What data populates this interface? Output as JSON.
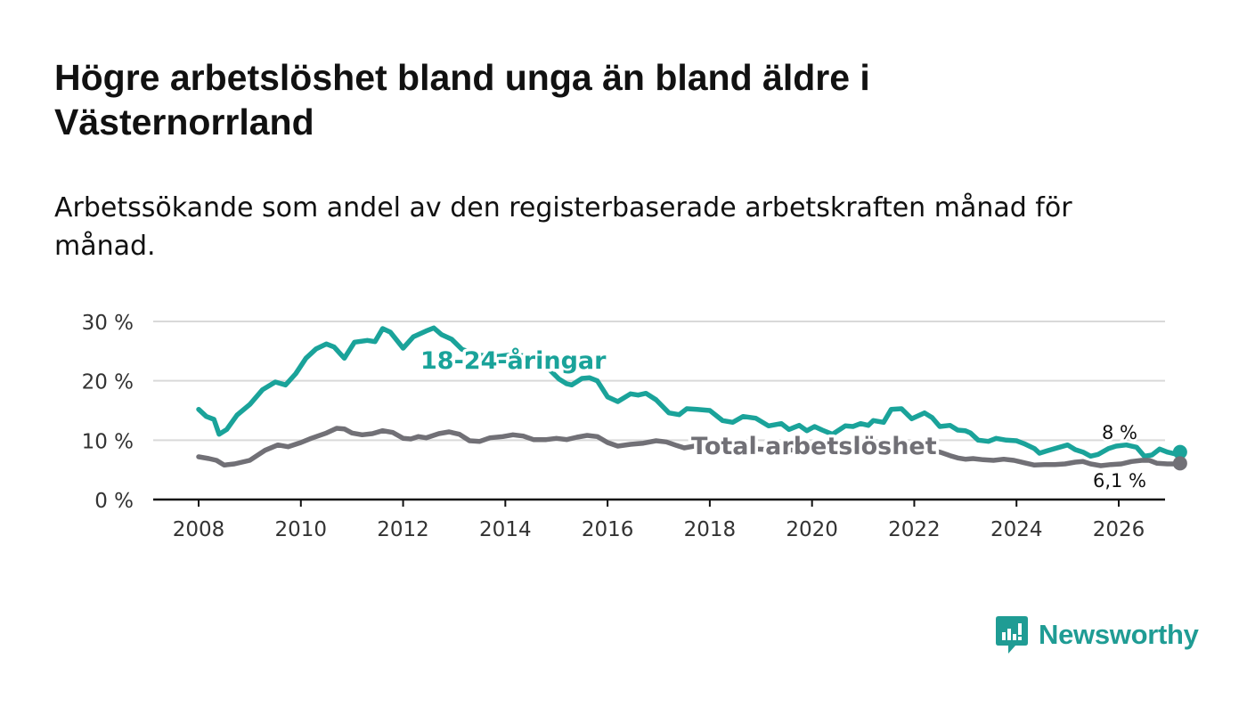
{
  "header": {
    "title": "Högre arbetslöshet bland unga än bland äldre i Västernorrland",
    "subtitle": "Arbetssökande som andel av den registerbaserade arbetskraften månad för månad."
  },
  "brand": {
    "name": "Newsworthy",
    "color": "#1f9c94",
    "icon": "newsworthy-logo-icon"
  },
  "chart_data": {
    "type": "line",
    "title": "Högre arbetslöshet bland unga än bland äldre i Västernorrland",
    "subtitle": "Arbetssökande som andel av den registerbaserade arbetskraften månad för månad.",
    "xlabel": "",
    "ylabel": "",
    "xlim": [
      2007.5,
      2026.9
    ],
    "ylim": [
      0,
      30
    ],
    "x_ticks": [
      2008,
      2010,
      2012,
      2014,
      2016,
      2018,
      2020,
      2022,
      2024,
      2026
    ],
    "x_tick_labels": [
      "2008",
      "2010",
      "2012",
      "2014",
      "2016",
      "2018",
      "2020",
      "2022",
      "2024",
      "2026"
    ],
    "y_ticks": [
      0,
      10,
      20,
      30
    ],
    "y_tick_labels": [
      "0 %",
      "10 %",
      "20 %",
      "30 %"
    ],
    "grid": true,
    "legend": "inline labels on lines",
    "series": [
      {
        "name": "18-24-åringar",
        "color": "#1aa39a",
        "end_label": "8 %",
        "points": [
          [
            2008.0,
            15.2
          ],
          [
            2008.15,
            14.0
          ],
          [
            2008.3,
            13.5
          ],
          [
            2008.4,
            11.0
          ],
          [
            2008.55,
            11.8
          ],
          [
            2008.75,
            14.2
          ],
          [
            2009.0,
            16.0
          ],
          [
            2009.25,
            18.5
          ],
          [
            2009.5,
            19.8
          ],
          [
            2009.7,
            19.3
          ],
          [
            2009.9,
            21.2
          ],
          [
            2010.1,
            23.8
          ],
          [
            2010.3,
            25.4
          ],
          [
            2010.5,
            26.2
          ],
          [
            2010.65,
            25.7
          ],
          [
            2010.85,
            23.8
          ],
          [
            2011.05,
            26.5
          ],
          [
            2011.3,
            26.8
          ],
          [
            2011.45,
            26.6
          ],
          [
            2011.6,
            28.8
          ],
          [
            2011.75,
            28.2
          ],
          [
            2012.0,
            25.5
          ],
          [
            2012.2,
            27.4
          ],
          [
            2012.45,
            28.4
          ],
          [
            2012.6,
            28.9
          ],
          [
            2012.75,
            27.8
          ],
          [
            2012.95,
            27.0
          ],
          [
            2013.15,
            25.3
          ],
          [
            2013.5,
            24.3
          ],
          [
            2013.85,
            24.1
          ],
          [
            2014.2,
            24.5
          ],
          [
            2014.55,
            23.8
          ],
          [
            2014.85,
            22.0
          ],
          [
            2015.05,
            20.3
          ],
          [
            2015.2,
            19.5
          ],
          [
            2015.3,
            19.3
          ],
          [
            2015.5,
            20.4
          ],
          [
            2015.65,
            20.5
          ],
          [
            2015.8,
            20.0
          ],
          [
            2016.0,
            17.3
          ],
          [
            2016.2,
            16.5
          ],
          [
            2016.45,
            17.8
          ],
          [
            2016.6,
            17.6
          ],
          [
            2016.75,
            17.9
          ],
          [
            2016.95,
            16.8
          ],
          [
            2017.2,
            14.6
          ],
          [
            2017.4,
            14.3
          ],
          [
            2017.55,
            15.3
          ],
          [
            2017.75,
            15.2
          ],
          [
            2018.0,
            15.0
          ],
          [
            2018.25,
            13.3
          ],
          [
            2018.45,
            13.0
          ],
          [
            2018.65,
            14.0
          ],
          [
            2018.9,
            13.7
          ],
          [
            2019.15,
            12.4
          ],
          [
            2019.4,
            12.8
          ],
          [
            2019.55,
            11.8
          ],
          [
            2019.75,
            12.5
          ],
          [
            2019.9,
            11.6
          ],
          [
            2020.05,
            12.3
          ],
          [
            2020.2,
            11.7
          ],
          [
            2020.4,
            11.0
          ],
          [
            2020.65,
            12.4
          ],
          [
            2020.8,
            12.3
          ],
          [
            2020.95,
            12.8
          ],
          [
            2021.1,
            12.5
          ],
          [
            2021.2,
            13.3
          ],
          [
            2021.4,
            13.0
          ],
          [
            2021.55,
            15.2
          ],
          [
            2021.75,
            15.3
          ],
          [
            2021.95,
            13.6
          ],
          [
            2022.2,
            14.6
          ],
          [
            2022.35,
            13.8
          ],
          [
            2022.5,
            12.3
          ],
          [
            2022.7,
            12.5
          ],
          [
            2022.85,
            11.7
          ],
          [
            2023.0,
            11.6
          ],
          [
            2023.1,
            11.2
          ],
          [
            2023.25,
            10.0
          ],
          [
            2023.45,
            9.8
          ],
          [
            2023.6,
            10.3
          ],
          [
            2023.8,
            10.0
          ],
          [
            2024.0,
            9.9
          ],
          [
            2024.15,
            9.4
          ],
          [
            2024.35,
            8.6
          ],
          [
            2024.45,
            7.8
          ],
          [
            2024.6,
            8.2
          ],
          [
            2024.75,
            8.6
          ],
          [
            2025.0,
            9.2
          ],
          [
            2025.15,
            8.4
          ],
          [
            2025.3,
            8.0
          ],
          [
            2025.45,
            7.3
          ],
          [
            2025.6,
            7.6
          ],
          [
            2025.8,
            8.6
          ],
          [
            2025.95,
            9.0
          ],
          [
            2026.15,
            9.2
          ],
          [
            2026.35,
            8.8
          ],
          [
            2026.5,
            7.3
          ],
          [
            2026.65,
            7.5
          ],
          [
            2026.8,
            8.5
          ],
          [
            2026.95,
            8.0
          ],
          [
            2027.1,
            7.7
          ],
          [
            2027.2,
            8.0
          ]
        ]
      },
      {
        "name": "Total arbetslöshet",
        "color": "#717076",
        "end_label": "6,1 %",
        "points": [
          [
            2008.0,
            7.2
          ],
          [
            2008.2,
            6.9
          ],
          [
            2008.35,
            6.6
          ],
          [
            2008.5,
            5.8
          ],
          [
            2008.7,
            6.0
          ],
          [
            2009.0,
            6.6
          ],
          [
            2009.3,
            8.3
          ],
          [
            2009.55,
            9.2
          ],
          [
            2009.75,
            8.9
          ],
          [
            2010.0,
            9.6
          ],
          [
            2010.2,
            10.3
          ],
          [
            2010.5,
            11.2
          ],
          [
            2010.7,
            12.0
          ],
          [
            2010.85,
            11.9
          ],
          [
            2011.0,
            11.2
          ],
          [
            2011.2,
            10.9
          ],
          [
            2011.4,
            11.1
          ],
          [
            2011.6,
            11.6
          ],
          [
            2011.8,
            11.3
          ],
          [
            2012.0,
            10.3
          ],
          [
            2012.15,
            10.2
          ],
          [
            2012.3,
            10.6
          ],
          [
            2012.45,
            10.4
          ],
          [
            2012.7,
            11.1
          ],
          [
            2012.9,
            11.4
          ],
          [
            2013.1,
            11.0
          ],
          [
            2013.3,
            9.9
          ],
          [
            2013.5,
            9.8
          ],
          [
            2013.7,
            10.4
          ],
          [
            2013.95,
            10.6
          ],
          [
            2014.15,
            10.9
          ],
          [
            2014.35,
            10.7
          ],
          [
            2014.55,
            10.1
          ],
          [
            2014.8,
            10.1
          ],
          [
            2015.0,
            10.3
          ],
          [
            2015.2,
            10.1
          ],
          [
            2015.4,
            10.5
          ],
          [
            2015.6,
            10.8
          ],
          [
            2015.8,
            10.6
          ],
          [
            2016.0,
            9.6
          ],
          [
            2016.2,
            9.0
          ],
          [
            2016.45,
            9.3
          ],
          [
            2016.7,
            9.5
          ],
          [
            2016.95,
            9.9
          ],
          [
            2017.15,
            9.7
          ],
          [
            2017.35,
            9.1
          ],
          [
            2017.5,
            8.7
          ],
          [
            2017.7,
            9.0
          ],
          [
            2017.9,
            9.2
          ],
          [
            2018.1,
            9.3
          ],
          [
            2018.3,
            9.0
          ],
          [
            2018.5,
            8.5
          ],
          [
            2018.7,
            8.7
          ],
          [
            2018.9,
            8.5
          ],
          [
            2019.2,
            8.4
          ],
          [
            2019.5,
            8.3
          ],
          [
            2019.8,
            8.4
          ],
          [
            2020.1,
            8.1
          ],
          [
            2020.4,
            7.9
          ],
          [
            2020.7,
            8.5
          ],
          [
            2021.0,
            8.7
          ],
          [
            2021.3,
            8.6
          ],
          [
            2021.6,
            8.8
          ],
          [
            2021.9,
            8.4
          ],
          [
            2022.2,
            8.2
          ],
          [
            2022.5,
            8.0
          ],
          [
            2022.7,
            7.4
          ],
          [
            2022.85,
            7.0
          ],
          [
            2023.0,
            6.8
          ],
          [
            2023.15,
            6.9
          ],
          [
            2023.35,
            6.7
          ],
          [
            2023.55,
            6.6
          ],
          [
            2023.75,
            6.8
          ],
          [
            2023.95,
            6.6
          ],
          [
            2024.15,
            6.2
          ],
          [
            2024.35,
            5.8
          ],
          [
            2024.55,
            5.9
          ],
          [
            2024.75,
            5.9
          ],
          [
            2024.95,
            6.0
          ],
          [
            2025.15,
            6.3
          ],
          [
            2025.3,
            6.4
          ],
          [
            2025.45,
            6.0
          ],
          [
            2025.65,
            5.7
          ],
          [
            2025.85,
            5.9
          ],
          [
            2026.05,
            6.0
          ],
          [
            2026.25,
            6.4
          ],
          [
            2026.45,
            6.6
          ],
          [
            2026.6,
            6.6
          ],
          [
            2026.75,
            6.1
          ],
          [
            2026.95,
            6.0
          ],
          [
            2027.1,
            6.0
          ],
          [
            2027.2,
            6.1
          ]
        ]
      }
    ]
  }
}
